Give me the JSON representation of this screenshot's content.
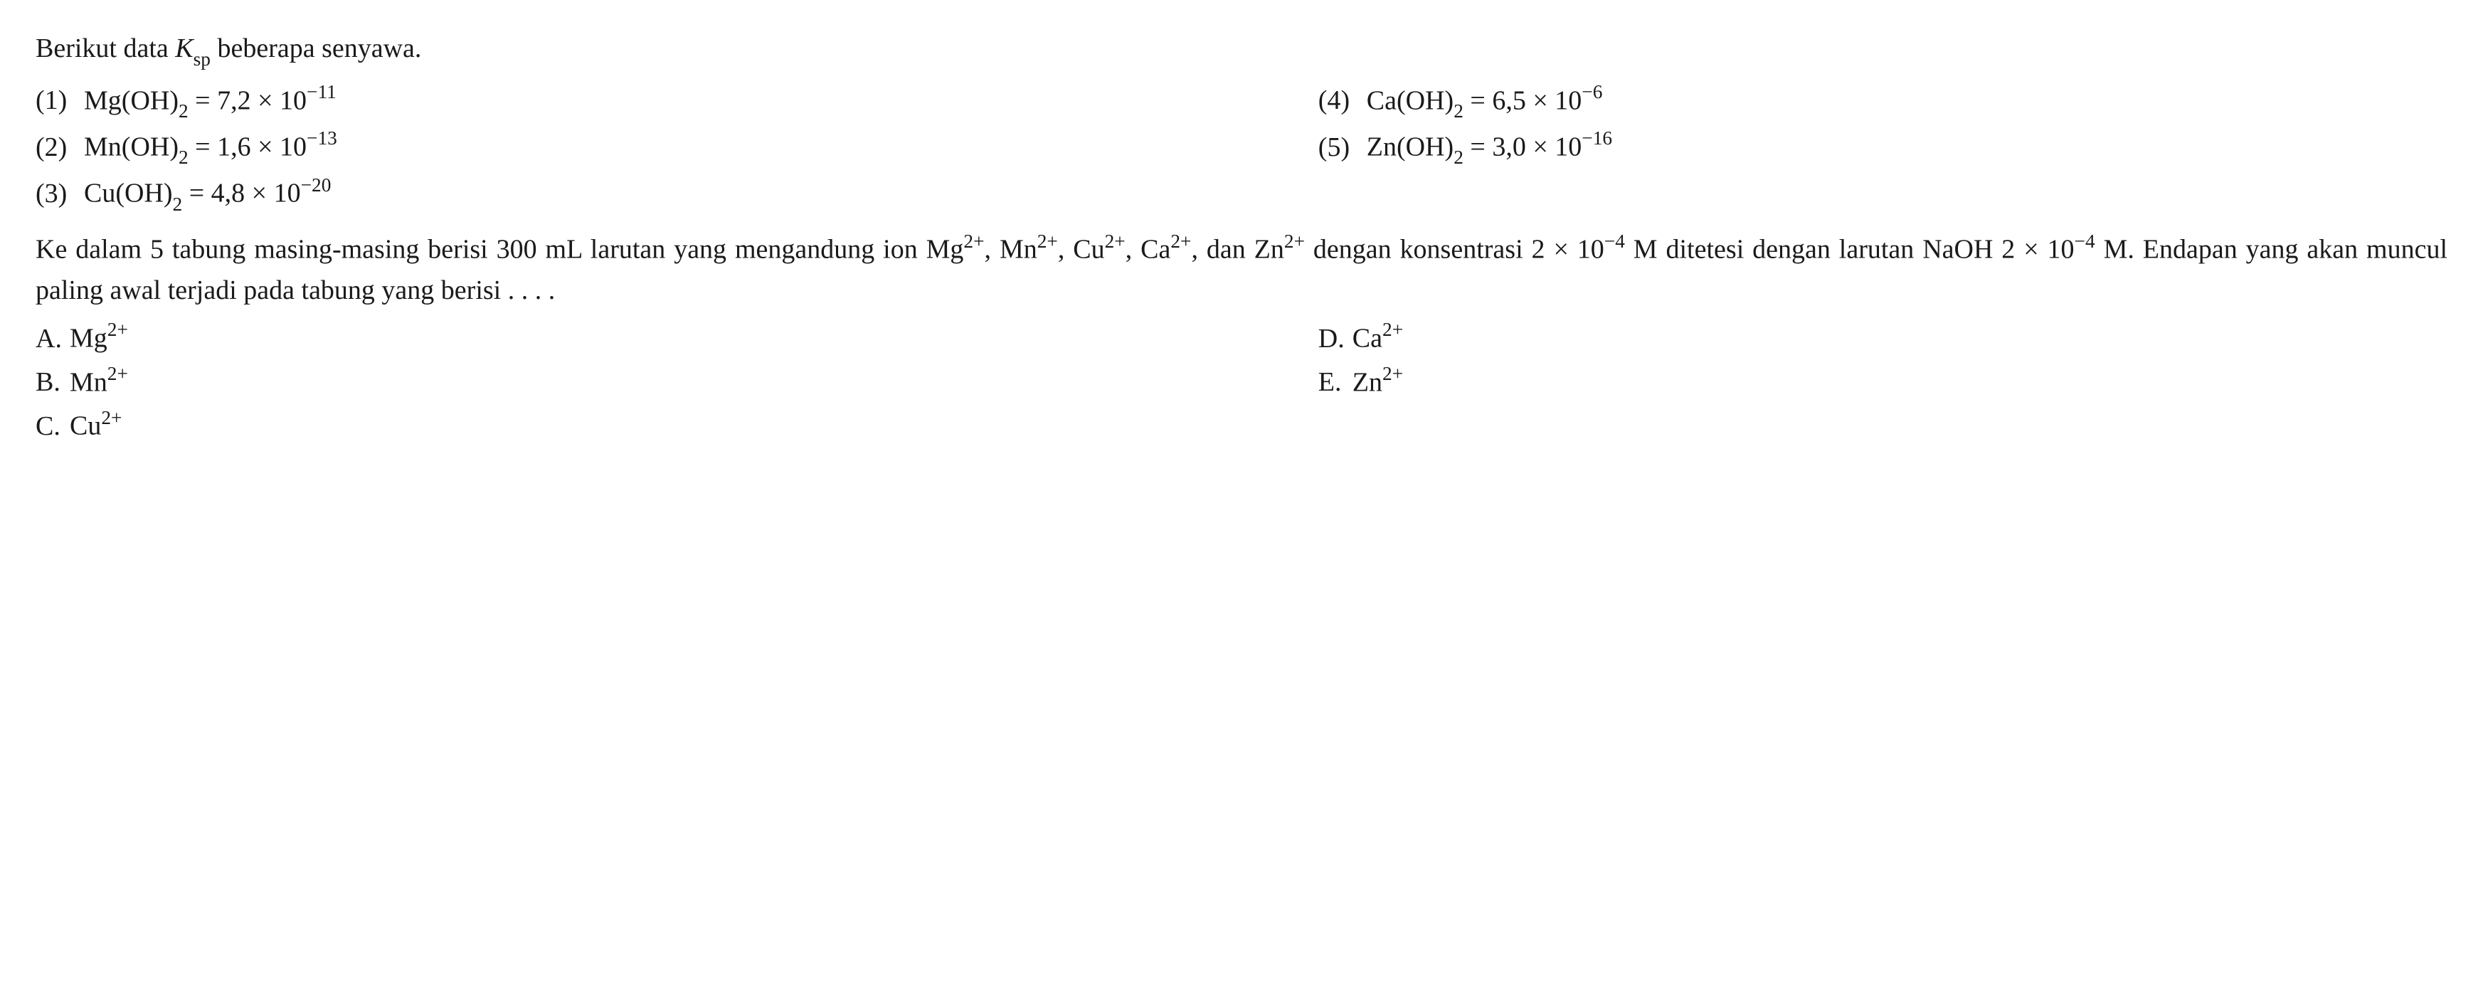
{
  "intro_prefix": "Berikut data ",
  "intro_k": "K",
  "intro_ksub": "sp",
  "intro_suffix": " beberapa senyawa.",
  "items": {
    "i1": {
      "n": "(1)",
      "comp_a": "Mg(OH)",
      "comp_sub": "2",
      "eq": " = 7,2 × 10",
      "exp": "−11"
    },
    "i2": {
      "n": "(2)",
      "comp_a": "Mn(OH)",
      "comp_sub": "2",
      "eq": " = 1,6 × 10",
      "exp": "−13"
    },
    "i3": {
      "n": "(3)",
      "comp_a": "Cu(OH)",
      "comp_sub": "2",
      "eq": " = 4,8 × 10",
      "exp": "−20"
    },
    "i4": {
      "n": "(4)",
      "comp_a": "Ca(OH)",
      "comp_sub": "2",
      "eq": " = 6,5 × 10",
      "exp": "−6"
    },
    "i5": {
      "n": "(5)",
      "comp_a": "Zn(OH)",
      "comp_sub": "2",
      "eq": " = 3,0 × 10",
      "exp": "−16"
    }
  },
  "body": {
    "p1a": "Ke dalam 5 tabung masing-masing berisi 300 mL larutan yang mengandung ion Mg",
    "p1a_sup": "2+",
    "p1b": ", Mn",
    "p1b_sup": "2+",
    "p1c": ", Cu",
    "p1c_sup": "2+",
    "p1d": ", Ca",
    "p1d_sup": "2+",
    "p1e": ", dan Zn",
    "p1e_sup": "2+",
    "p1f": " dengan konsentrasi 2 × 10",
    "p1f_sup": "−4",
    "p1g": " M ditetesi dengan larutan NaOH 2 × 10",
    "p1g_sup": "−4",
    "p1h": " M. Endapan yang akan muncul paling awal terjadi pada tabung yang berisi . . . ."
  },
  "options": {
    "a": {
      "label": "A.",
      "base": "Mg",
      "sup": "2+"
    },
    "b": {
      "label": "B.",
      "base": "Mn",
      "sup": "2+"
    },
    "c": {
      "label": "C.",
      "base": "Cu",
      "sup": "2+"
    },
    "d": {
      "label": "D.",
      "base": "Ca",
      "sup": "2+"
    },
    "e": {
      "label": "E.",
      "base": "Zn",
      "sup": "2+"
    }
  },
  "colors": {
    "text": "#1a1a1a",
    "background": "#ffffff"
  },
  "typography": {
    "base_font_pt": 38,
    "sub_sup_scale": 0.72,
    "family": "Times New Roman"
  }
}
